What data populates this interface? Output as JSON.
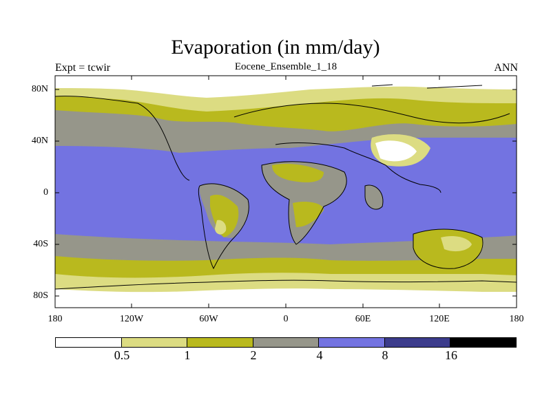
{
  "title": "Evaporation (in mm/day)",
  "subtitle_left": "Expt = tcwir",
  "subtitle_center": "Eocene_Ensemble_1_18",
  "subtitle_right": "ANN",
  "lat_labels": [
    "80N",
    "40N",
    "0",
    "40S",
    "80S"
  ],
  "lon_labels": [
    "180",
    "120W",
    "60W",
    "0",
    "60E",
    "120E",
    "180"
  ],
  "colorbar": {
    "colors": [
      "#ffffff",
      "#dcdc82",
      "#b9b91e",
      "#96968a",
      "#7373e1",
      "#3c3c8c",
      "#000000"
    ],
    "labels": [
      "0.5",
      "1",
      "2",
      "4",
      "8",
      "16"
    ]
  }
}
